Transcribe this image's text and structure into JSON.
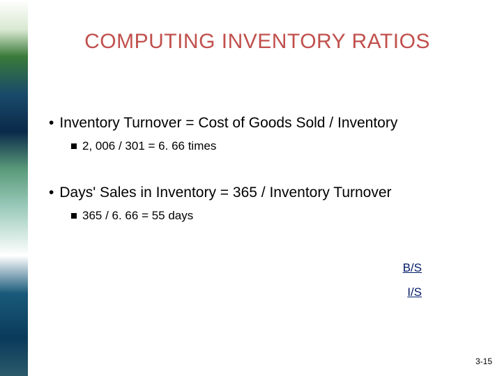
{
  "title": "COMPUTING INVENTORY RATIOS",
  "bullets": [
    {
      "text": "Inventory Turnover = Cost of Goods Sold / Inventory",
      "sub": "2, 006 / 301 = 6. 66 times"
    },
    {
      "text": "Days' Sales in Inventory = 365 / Inventory Turnover",
      "sub": "365 / 6. 66 = 55 days"
    }
  ],
  "links": [
    "B/S",
    "I/S"
  ],
  "page_number": "3-15",
  "colors": {
    "title_color": "#c0504d",
    "text_color": "#000000",
    "link_color": "#001a66",
    "background": "#ffffff"
  }
}
